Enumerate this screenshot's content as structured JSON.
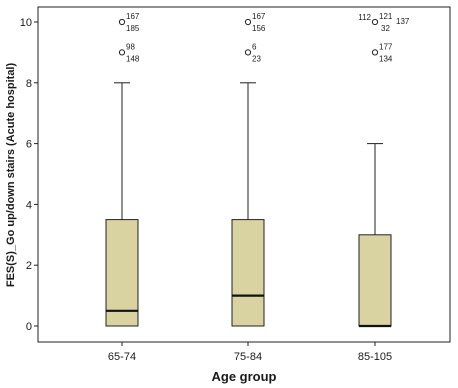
{
  "chart_data": {
    "type": "boxplot",
    "xlabel": "Age group",
    "ylabel": "FES(S)_Go up/down stairs (Acute hospital)",
    "ylim": [
      0,
      10.5
    ],
    "yticks": [
      0,
      2,
      4,
      6,
      8,
      10
    ],
    "grid": false,
    "colors": {
      "box_fill": "#d8d3a0",
      "stroke": "#222222",
      "background": "#ffffff"
    },
    "categories": [
      "65-74",
      "75-84",
      "85-105"
    ],
    "boxes": [
      {
        "category": "65-74",
        "whisker_low": 0,
        "q1": 0,
        "median": 0.5,
        "q3": 3.5,
        "whisker_high": 8,
        "outliers": [
          {
            "value": 10,
            "labels": [
              "167",
              "185"
            ]
          },
          {
            "value": 9,
            "labels": [
              "98",
              "148"
            ]
          }
        ]
      },
      {
        "category": "75-84",
        "whisker_low": 0,
        "q1": 0,
        "median": 1,
        "q3": 3.5,
        "whisker_high": 8,
        "outliers": [
          {
            "value": 10,
            "labels": [
              "167",
              "156"
            ]
          },
          {
            "value": 9,
            "labels": [
              "6",
              "23"
            ]
          }
        ]
      },
      {
        "category": "85-105",
        "whisker_low": 0,
        "q1": 0,
        "median": 0,
        "q3": 3,
        "whisker_high": 6,
        "outliers": [
          {
            "value": 10,
            "labels": [
              "112",
              "121",
              "32",
              "137"
            ]
          },
          {
            "value": 9,
            "labels": [
              "177",
              "134"
            ]
          }
        ]
      }
    ]
  }
}
